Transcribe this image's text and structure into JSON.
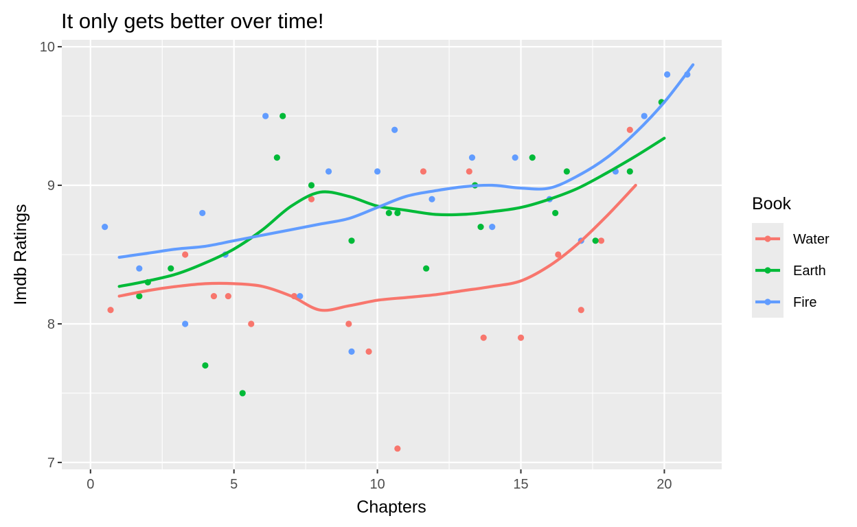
{
  "chart_data": {
    "type": "scatter",
    "title": "It only gets better over time!",
    "xlabel": "Chapters",
    "ylabel": "Imdb Ratings",
    "xlim": [
      -1,
      22
    ],
    "ylim": [
      6.95,
      10.05
    ],
    "xticks": [
      0,
      5,
      10,
      15,
      20
    ],
    "yticks": [
      7,
      8,
      9,
      10
    ],
    "grid": true,
    "legend_title": "Book",
    "legend_position": "right",
    "series": [
      {
        "name": "Water",
        "color": "#F8766D",
        "points": [
          [
            0.7,
            8.1
          ],
          [
            3.3,
            8.5
          ],
          [
            4.3,
            8.2
          ],
          [
            4.8,
            8.2
          ],
          [
            5.6,
            8.0
          ],
          [
            7.1,
            8.2
          ],
          [
            7.7,
            8.9
          ],
          [
            9.0,
            8.0
          ],
          [
            9.7,
            7.8
          ],
          [
            10.7,
            7.1
          ],
          [
            11.6,
            9.1
          ],
          [
            13.2,
            9.1
          ],
          [
            13.7,
            7.9
          ],
          [
            15.0,
            7.9
          ],
          [
            16.3,
            8.5
          ],
          [
            17.1,
            8.1
          ],
          [
            17.8,
            8.6
          ],
          [
            18.8,
            9.4
          ]
        ],
        "trend": [
          [
            1,
            8.2
          ],
          [
            2,
            8.24
          ],
          [
            3,
            8.27
          ],
          [
            4,
            8.29
          ],
          [
            5,
            8.29
          ],
          [
            6,
            8.27
          ],
          [
            7,
            8.2
          ],
          [
            8,
            8.1
          ],
          [
            9,
            8.13
          ],
          [
            10,
            8.17
          ],
          [
            11,
            8.19
          ],
          [
            12,
            8.21
          ],
          [
            13,
            8.24
          ],
          [
            14,
            8.27
          ],
          [
            15,
            8.31
          ],
          [
            16,
            8.42
          ],
          [
            17,
            8.58
          ],
          [
            18,
            8.78
          ],
          [
            19,
            9.0
          ]
        ]
      },
      {
        "name": "Earth",
        "color": "#00BA38",
        "points": [
          [
            1.7,
            8.2
          ],
          [
            2.0,
            8.3
          ],
          [
            2.8,
            8.4
          ],
          [
            4.0,
            7.7
          ],
          [
            5.3,
            7.5
          ],
          [
            6.5,
            9.2
          ],
          [
            6.7,
            9.5
          ],
          [
            7.7,
            9.0
          ],
          [
            9.1,
            8.6
          ],
          [
            10.4,
            8.8
          ],
          [
            10.7,
            8.8
          ],
          [
            11.7,
            8.4
          ],
          [
            13.4,
            9.0
          ],
          [
            13.6,
            8.7
          ],
          [
            15.4,
            9.2
          ],
          [
            16.2,
            8.8
          ],
          [
            16.6,
            9.1
          ],
          [
            17.6,
            8.6
          ],
          [
            18.8,
            9.1
          ],
          [
            19.9,
            9.6
          ]
        ],
        "trend": [
          [
            1,
            8.27
          ],
          [
            2,
            8.31
          ],
          [
            3,
            8.36
          ],
          [
            4,
            8.44
          ],
          [
            5,
            8.54
          ],
          [
            6,
            8.68
          ],
          [
            7,
            8.85
          ],
          [
            8,
            8.95
          ],
          [
            9,
            8.92
          ],
          [
            10,
            8.85
          ],
          [
            11,
            8.82
          ],
          [
            12,
            8.79
          ],
          [
            13,
            8.79
          ],
          [
            14,
            8.81
          ],
          [
            15,
            8.84
          ],
          [
            16,
            8.9
          ],
          [
            17,
            8.98
          ],
          [
            18,
            9.09
          ],
          [
            19,
            9.21
          ],
          [
            20,
            9.34
          ]
        ]
      },
      {
        "name": "Fire",
        "color": "#619CFF",
        "points": [
          [
            0.5,
            8.7
          ],
          [
            1.7,
            8.4
          ],
          [
            3.3,
            8.0
          ],
          [
            3.9,
            8.8
          ],
          [
            4.7,
            8.5
          ],
          [
            6.1,
            9.5
          ],
          [
            7.3,
            8.2
          ],
          [
            8.3,
            9.1
          ],
          [
            9.1,
            7.8
          ],
          [
            10.0,
            9.1
          ],
          [
            10.6,
            9.4
          ],
          [
            11.9,
            8.9
          ],
          [
            13.3,
            9.2
          ],
          [
            14.0,
            8.7
          ],
          [
            14.8,
            9.2
          ],
          [
            16.0,
            8.9
          ],
          [
            17.1,
            8.6
          ],
          [
            18.3,
            9.1
          ],
          [
            19.3,
            9.5
          ],
          [
            20.1,
            9.8
          ],
          [
            20.8,
            9.8
          ]
        ],
        "trend": [
          [
            1,
            8.48
          ],
          [
            2,
            8.51
          ],
          [
            3,
            8.54
          ],
          [
            4,
            8.56
          ],
          [
            5,
            8.6
          ],
          [
            6,
            8.64
          ],
          [
            7,
            8.68
          ],
          [
            8,
            8.72
          ],
          [
            9,
            8.76
          ],
          [
            10,
            8.84
          ],
          [
            11,
            8.92
          ],
          [
            12,
            8.96
          ],
          [
            13,
            8.99
          ],
          [
            14,
            9.0
          ],
          [
            15,
            8.98
          ],
          [
            16,
            8.98
          ],
          [
            17,
            9.07
          ],
          [
            18,
            9.2
          ],
          [
            19,
            9.38
          ],
          [
            20,
            9.6
          ],
          [
            21,
            9.87
          ]
        ]
      }
    ]
  }
}
